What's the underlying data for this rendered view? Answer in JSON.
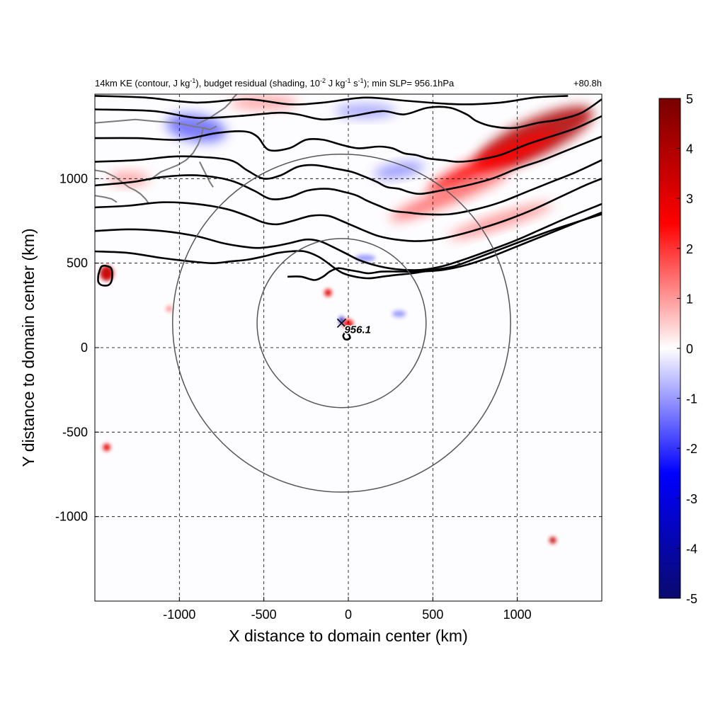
{
  "chart_data": {
    "type": "heatmap",
    "title_left": "14km KE (contour, J kg",
    "title_parts": {
      "a": "14km KE (contour, J kg",
      "a_sup": "-1",
      "b": "), budget residual (shading, 10",
      "b_sup": "-2",
      "c": " J kg",
      "c_sup": "-1",
      "d": " s",
      "d_sup": "-1",
      "e": "); min SLP= 956.1hPa"
    },
    "title_right": "+80.8h",
    "xlabel": "X distance to domain center (km)",
    "ylabel": "Y distance to domain center (km)",
    "xlim": [
      -1500,
      1500
    ],
    "ylim": [
      -1500,
      1500
    ],
    "x_ticks": [
      -1000,
      -500,
      0,
      500,
      1000
    ],
    "x_tick_labels": [
      "-1000",
      "-500",
      "0",
      "500",
      "1000"
    ],
    "y_ticks": [
      -1000,
      -500,
      0,
      500,
      1000
    ],
    "y_tick_labels": [
      "-1000",
      "-500",
      "0",
      "500",
      "1000"
    ],
    "grid": true,
    "colorbar": {
      "min": -5,
      "max": 5,
      "ticks": [
        5,
        4,
        3,
        2,
        1,
        0,
        -1,
        -2,
        -3,
        -4,
        -5
      ],
      "tick_labels": [
        "5",
        "4",
        "3",
        "2",
        "1",
        "0",
        "-1",
        "-2",
        "-3",
        "-4",
        "-5"
      ],
      "colors": [
        "#0a0a6e",
        "#0000ff",
        "#ffffff",
        "#ff0000",
        "#780000"
      ]
    },
    "storm_center": {
      "x": -40,
      "y": 145
    },
    "storm_label": "956.1",
    "circles": [
      {
        "x": -40,
        "y": 145,
        "radius_km": 500
      },
      {
        "x": -40,
        "y": 145,
        "radius_km": 1000
      }
    ],
    "ke_contours": [
      [
        [
          -1500,
          1490
        ],
        [
          -1200,
          1480
        ],
        [
          -900,
          1450
        ],
        [
          -600,
          1470
        ],
        [
          -350,
          1440
        ],
        [
          -150,
          1450
        ],
        [
          100,
          1480
        ],
        [
          350,
          1460
        ],
        [
          650,
          1440
        ],
        [
          900,
          1450
        ],
        [
          1100,
          1480
        ],
        [
          1300,
          1490
        ]
      ],
      [
        [
          -1500,
          1410
        ],
        [
          -1150,
          1400
        ],
        [
          -900,
          1360
        ],
        [
          -650,
          1370
        ],
        [
          -420,
          1390
        ],
        [
          -300,
          1380
        ],
        [
          -150,
          1350
        ],
        [
          20,
          1370
        ],
        [
          200,
          1400
        ],
        [
          330,
          1380
        ],
        [
          470,
          1420
        ],
        [
          600,
          1420
        ],
        [
          700,
          1380
        ],
        [
          760,
          1340
        ],
        [
          850,
          1310
        ],
        [
          980,
          1300
        ],
        [
          1120,
          1330
        ],
        [
          1250,
          1350
        ],
        [
          1380,
          1390
        ],
        [
          1500,
          1470
        ]
      ],
      [
        [
          -1500,
          1240
        ],
        [
          -1250,
          1240
        ],
        [
          -1000,
          1230
        ],
        [
          -780,
          1270
        ],
        [
          -620,
          1280
        ],
        [
          -540,
          1250
        ],
        [
          -470,
          1170
        ],
        [
          -350,
          1180
        ],
        [
          -250,
          1230
        ],
        [
          -150,
          1230
        ],
        [
          -40,
          1200
        ],
        [
          60,
          1180
        ],
        [
          180,
          1190
        ],
        [
          260,
          1180
        ],
        [
          330,
          1150
        ],
        [
          400,
          1140
        ],
        [
          470,
          1120
        ],
        [
          560,
          1110
        ],
        [
          650,
          1100
        ],
        [
          760,
          1110
        ],
        [
          900,
          1140
        ],
        [
          1050,
          1200
        ],
        [
          1200,
          1250
        ],
        [
          1350,
          1300
        ],
        [
          1500,
          1370
        ]
      ],
      [
        [
          -1500,
          1100
        ],
        [
          -1250,
          1110
        ],
        [
          -1050,
          1130
        ],
        [
          -900,
          1130
        ],
        [
          -700,
          1110
        ],
        [
          -600,
          1050
        ],
        [
          -500,
          1000
        ],
        [
          -400,
          1020
        ],
        [
          -300,
          1070
        ],
        [
          -200,
          1080
        ],
        [
          -80,
          1060
        ],
        [
          20,
          1040
        ],
        [
          100,
          1010
        ],
        [
          170,
          980
        ],
        [
          230,
          950
        ],
        [
          300,
          940
        ],
        [
          360,
          920
        ],
        [
          430,
          910
        ],
        [
          550,
          930
        ],
        [
          700,
          960
        ],
        [
          850,
          1000
        ],
        [
          1000,
          1060
        ],
        [
          1150,
          1110
        ],
        [
          1300,
          1170
        ],
        [
          1500,
          1250
        ]
      ],
      [
        [
          -1500,
          960
        ],
        [
          -1280,
          980
        ],
        [
          -1100,
          1010
        ],
        [
          -900,
          1020
        ],
        [
          -700,
          990
        ],
        [
          -560,
          930
        ],
        [
          -460,
          880
        ],
        [
          -350,
          890
        ],
        [
          -240,
          930
        ],
        [
          -120,
          940
        ],
        [
          -20,
          920
        ],
        [
          50,
          900
        ],
        [
          110,
          870
        ],
        [
          180,
          840
        ],
        [
          260,
          810
        ],
        [
          350,
          800
        ],
        [
          450,
          790
        ],
        [
          600,
          790
        ],
        [
          760,
          820
        ],
        [
          900,
          860
        ],
        [
          1050,
          920
        ],
        [
          1200,
          980
        ],
        [
          1350,
          1040
        ],
        [
          1500,
          1110
        ]
      ],
      [
        [
          -1500,
          830
        ],
        [
          -1300,
          840
        ],
        [
          -1100,
          860
        ],
        [
          -900,
          850
        ],
        [
          -720,
          820
        ],
        [
          -600,
          780
        ],
        [
          -500,
          740
        ],
        [
          -420,
          730
        ],
        [
          -330,
          750
        ],
        [
          -220,
          780
        ],
        [
          -120,
          780
        ],
        [
          -40,
          750
        ],
        [
          30,
          720
        ],
        [
          100,
          690
        ],
        [
          180,
          660
        ],
        [
          280,
          640
        ],
        [
          400,
          630
        ],
        [
          520,
          640
        ],
        [
          660,
          670
        ],
        [
          800,
          710
        ],
        [
          950,
          760
        ],
        [
          1100,
          820
        ],
        [
          1250,
          890
        ],
        [
          1400,
          960
        ],
        [
          1500,
          1000
        ]
      ],
      [
        [
          -1500,
          690
        ],
        [
          -1300,
          700
        ],
        [
          -1100,
          690
        ],
        [
          -900,
          660
        ],
        [
          -750,
          620
        ],
        [
          -640,
          600
        ],
        [
          -540,
          590
        ],
        [
          -440,
          600
        ],
        [
          -340,
          620
        ],
        [
          -250,
          640
        ],
        [
          -170,
          630
        ],
        [
          -100,
          600
        ],
        [
          -20,
          560
        ],
        [
          60,
          520
        ],
        [
          150,
          490
        ],
        [
          240,
          470
        ],
        [
          330,
          460
        ],
        [
          430,
          460
        ],
        [
          550,
          480
        ],
        [
          680,
          520
        ],
        [
          820,
          570
        ],
        [
          980,
          630
        ],
        [
          1140,
          700
        ],
        [
          1300,
          770
        ],
        [
          1500,
          850
        ]
      ],
      [
        [
          -1500,
          570
        ],
        [
          -1300,
          560
        ],
        [
          -1100,
          530
        ],
        [
          -930,
          510
        ],
        [
          -800,
          500
        ],
        [
          -700,
          510
        ],
        [
          -600,
          520
        ],
        [
          -500,
          540
        ],
        [
          -420,
          560
        ],
        [
          -340,
          570
        ],
        [
          -260,
          570
        ],
        [
          -180,
          540
        ],
        [
          -120,
          500
        ],
        [
          -80,
          470
        ],
        [
          -30,
          440
        ],
        [
          40,
          420
        ],
        [
          120,
          410
        ],
        [
          200,
          420
        ],
        [
          280,
          430
        ],
        [
          380,
          440
        ],
        [
          500,
          460
        ],
        [
          620,
          480
        ],
        [
          760,
          530
        ],
        [
          920,
          590
        ],
        [
          1080,
          650
        ],
        [
          1250,
          710
        ],
        [
          1500,
          790
        ]
      ],
      [
        [
          -360,
          420
        ],
        [
          -280,
          420
        ],
        [
          -200,
          400
        ],
        [
          -150,
          420
        ],
        [
          -110,
          450
        ],
        [
          -60,
          470
        ],
        [
          0,
          460
        ],
        [
          60,
          450
        ],
        [
          120,
          440
        ],
        [
          200,
          450
        ],
        [
          300,
          450
        ],
        [
          420,
          450
        ],
        [
          560,
          460
        ],
        [
          700,
          490
        ],
        [
          850,
          540
        ],
        [
          1000,
          600
        ],
        [
          1150,
          660
        ],
        [
          1300,
          720
        ],
        [
          1500,
          800
        ]
      ],
      [
        [
          -1480,
          430
        ],
        [
          -1460,
          480
        ],
        [
          -1420,
          480
        ],
        [
          -1400,
          460
        ],
        [
          -1400,
          400
        ],
        [
          -1420,
          370
        ],
        [
          -1460,
          370
        ],
        [
          -1480,
          390
        ],
        [
          -1480,
          430
        ]
      ],
      [
        [
          -20,
          90
        ],
        [
          0,
          80
        ],
        [
          10,
          60
        ],
        [
          0,
          50
        ],
        [
          -20,
          50
        ],
        [
          -30,
          70
        ],
        [
          -20,
          90
        ]
      ]
    ],
    "coastlines": [
      [
        [
          -1500,
          1330
        ],
        [
          -1380,
          1340
        ],
        [
          -1260,
          1350
        ],
        [
          -1150,
          1340
        ],
        [
          -1020,
          1330
        ],
        [
          -920,
          1310
        ],
        [
          -860,
          1300
        ],
        [
          -820,
          1290
        ],
        [
          -780,
          1310
        ]
      ],
      [
        [
          -860,
          1300
        ],
        [
          -870,
          1250
        ],
        [
          -890,
          1200
        ],
        [
          -920,
          1150
        ],
        [
          -960,
          1110
        ],
        [
          -1010,
          1080
        ],
        [
          -1060,
          1060
        ],
        [
          -1110,
          1040
        ],
        [
          -1150,
          1010
        ],
        [
          -1180,
          990
        ]
      ],
      [
        [
          -1500,
          1050
        ],
        [
          -1440,
          1040
        ],
        [
          -1380,
          1010
        ],
        [
          -1340,
          980
        ],
        [
          -1300,
          950
        ],
        [
          -1260,
          930
        ],
        [
          -1230,
          910
        ],
        [
          -1200,
          880
        ],
        [
          -1180,
          850
        ]
      ],
      [
        [
          -1500,
          900
        ],
        [
          -1440,
          890
        ],
        [
          -1400,
          880
        ],
        [
          -1370,
          860
        ]
      ],
      [
        [
          -880,
          1100
        ],
        [
          -860,
          1060
        ],
        [
          -840,
          1020
        ],
        [
          -820,
          980
        ],
        [
          -800,
          950
        ]
      ],
      [
        [
          -900,
          1320
        ],
        [
          -860,
          1340
        ],
        [
          -820,
          1360
        ],
        [
          -790,
          1380
        ],
        [
          -760,
          1400
        ],
        [
          -730,
          1420
        ],
        [
          -700,
          1450
        ],
        [
          -680,
          1480
        ],
        [
          -660,
          1500
        ]
      ]
    ],
    "shading_features": [
      {
        "x": 1100,
        "y": 1240,
        "rx": 380,
        "ry": 110,
        "angle": -25,
        "value": 4.0
      },
      {
        "x": 850,
        "y": 1100,
        "rx": 420,
        "ry": 60,
        "angle": -25,
        "value": 2.5
      },
      {
        "x": 600,
        "y": 900,
        "rx": 380,
        "ry": 50,
        "angle": -22,
        "value": 1.5
      },
      {
        "x": 900,
        "y": 750,
        "rx": 320,
        "ry": 40,
        "angle": -18,
        "value": 1.2
      },
      {
        "x": -900,
        "y": 1300,
        "rx": 180,
        "ry": 80,
        "angle": 10,
        "value": -1.5
      },
      {
        "x": -500,
        "y": 1450,
        "rx": 200,
        "ry": 40,
        "angle": 0,
        "value": 1.0
      },
      {
        "x": 100,
        "y": 1400,
        "rx": 180,
        "ry": 40,
        "angle": 0,
        "value": -1.0
      },
      {
        "x": 300,
        "y": 1050,
        "rx": 150,
        "ry": 40,
        "angle": -10,
        "value": -1.2
      },
      {
        "x": -1300,
        "y": 1000,
        "rx": 120,
        "ry": 40,
        "angle": 0,
        "value": 1.0
      },
      {
        "x": -1430,
        "y": 440,
        "rx": 40,
        "ry": 45,
        "angle": 0,
        "value": 3.5
      },
      {
        "x": -120,
        "y": 325,
        "rx": 22,
        "ry": 22,
        "angle": 0,
        "value": 3.0
      },
      {
        "x": -40,
        "y": 160,
        "rx": 14,
        "ry": 24,
        "angle": 0,
        "value": -3.5
      },
      {
        "x": 0,
        "y": 140,
        "rx": 28,
        "ry": 28,
        "angle": 0,
        "value": 2.5
      },
      {
        "x": -1060,
        "y": 230,
        "rx": 18,
        "ry": 18,
        "angle": 0,
        "value": 1.2
      },
      {
        "x": -1430,
        "y": -590,
        "rx": 22,
        "ry": 22,
        "angle": 0,
        "value": 3.0
      },
      {
        "x": 1210,
        "y": -1140,
        "rx": 20,
        "ry": 20,
        "angle": 0,
        "value": 3.5
      },
      {
        "x": 300,
        "y": 200,
        "rx": 40,
        "ry": 20,
        "angle": 0,
        "value": -1.0
      },
      {
        "x": 100,
        "y": 530,
        "rx": 60,
        "ry": 20,
        "angle": 0,
        "value": -1.0
      }
    ]
  }
}
